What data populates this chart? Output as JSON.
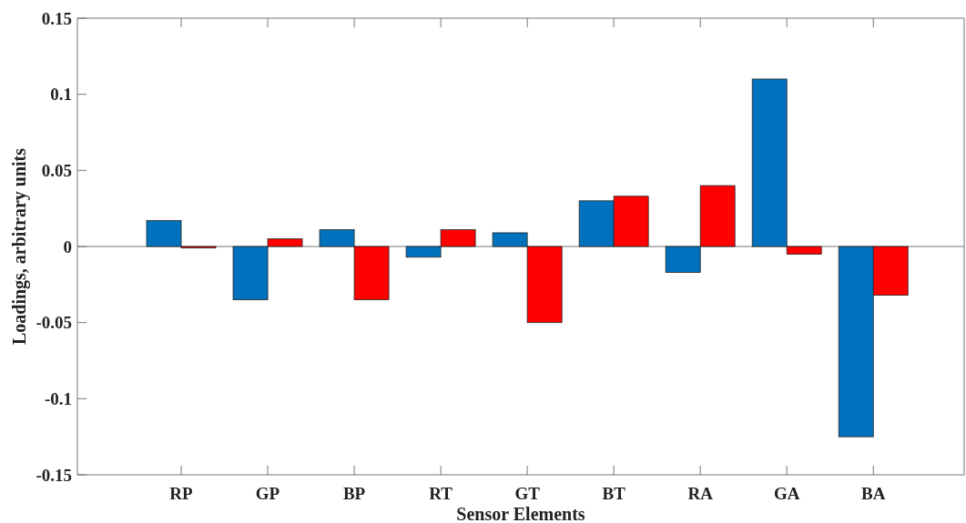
{
  "chart_data": {
    "type": "bar",
    "xlabel": "Sensor Elements",
    "ylabel": "Loadings, arbitrary units",
    "categories": [
      "RP",
      "GP",
      "BP",
      "RT",
      "GT",
      "BT",
      "RA",
      "GA",
      "BA"
    ],
    "series": [
      {
        "color": "#0072bd",
        "values": [
          0.017,
          -0.035,
          0.011,
          -0.007,
          0.009,
          0.03,
          -0.017,
          0.11,
          -0.125
        ]
      },
      {
        "color": "#ff0000",
        "values": [
          -0.001,
          0.005,
          -0.035,
          0.011,
          -0.05,
          0.033,
          0.04,
          -0.005,
          -0.032
        ]
      }
    ],
    "ylim": [
      -0.15,
      0.15
    ],
    "yticks": [
      -0.15,
      -0.1,
      -0.05,
      0,
      0.05,
      0.1,
      0.15
    ],
    "ref_lines": [
      {
        "axis": "y",
        "value": 0,
        "color": "#777777"
      }
    ]
  }
}
